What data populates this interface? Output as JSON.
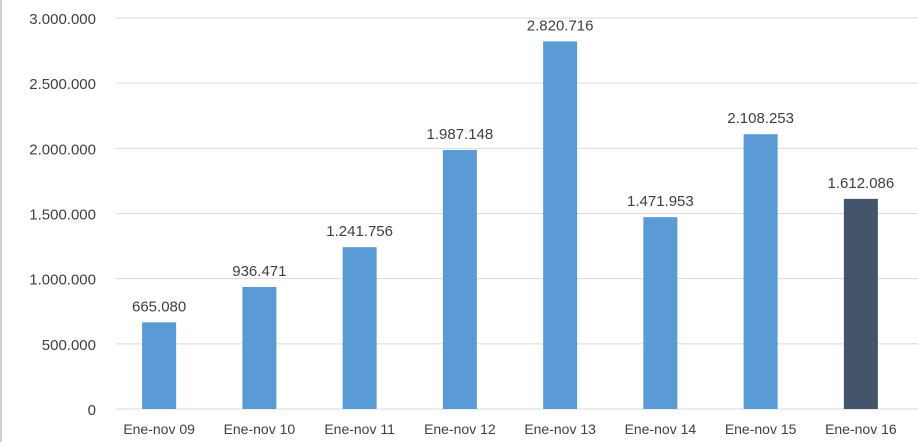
{
  "chart_data": {
    "type": "bar",
    "title": "",
    "xlabel": "",
    "ylabel": "",
    "categories": [
      "Ene-nov 09",
      "Ene-nov 10",
      "Ene-nov 11",
      "Ene-nov 12",
      "Ene-nov 13",
      "Ene-nov 14",
      "Ene-nov 15",
      "Ene-nov 16"
    ],
    "values": [
      665080,
      936471,
      1241756,
      1987148,
      2820716,
      1471953,
      2108253,
      1612086
    ],
    "value_labels": [
      "665.080",
      "936.471",
      "1.241.756",
      "1.987.148",
      "2.820.716",
      "1.471.953",
      "2.108.253",
      "1.612.086"
    ],
    "ylim": [
      0,
      3000000
    ],
    "yticks": [
      0,
      500000,
      1000000,
      1500000,
      2000000,
      2500000,
      3000000
    ],
    "ytick_labels": [
      "0",
      "500.000",
      "1.000.000",
      "1.500.000",
      "2.000.000",
      "2.500.000",
      "3.000.000"
    ],
    "grid": true,
    "legend": "none",
    "colors": {
      "default_bar": "#5B9BD5",
      "highlight_bar": "#44546A",
      "gridline": "#D9D9D9",
      "text": "#404040"
    },
    "highlight_index": 7
  }
}
